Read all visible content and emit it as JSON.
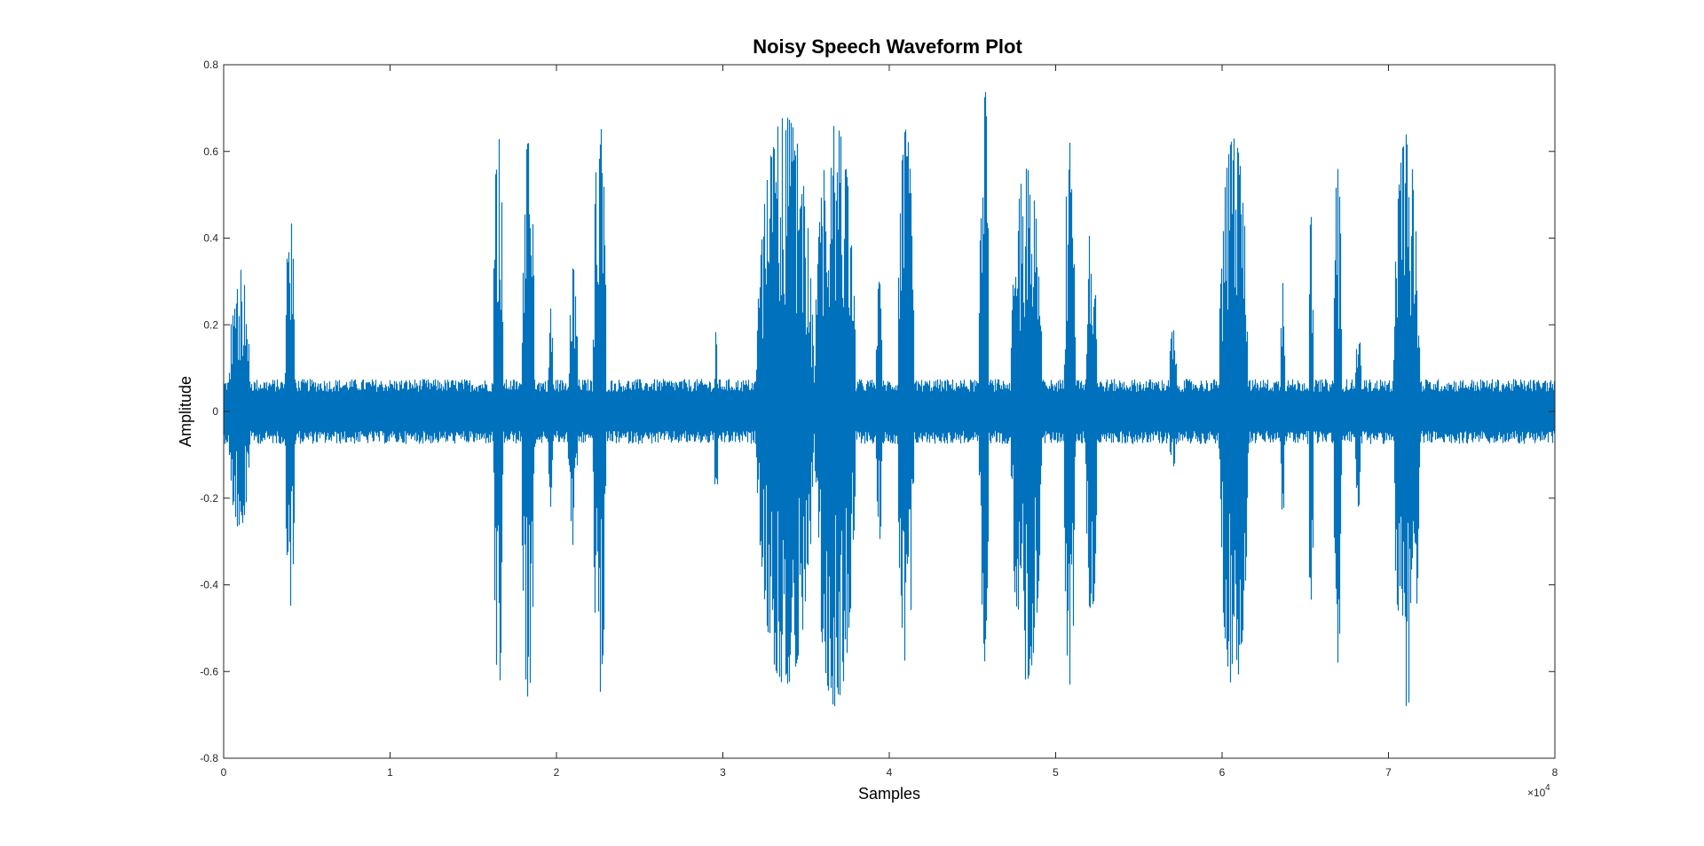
{
  "chart_data": {
    "type": "line",
    "title": "Noisy Speech Waveform Plot",
    "xlabel": "Samples",
    "ylabel": "Amplitude",
    "xlim": [
      0,
      80000
    ],
    "ylim": [
      -0.8,
      0.8
    ],
    "x_exponent_label": "×10",
    "x_exponent_power": "4",
    "x_ticks": [
      0,
      1,
      2,
      3,
      4,
      5,
      6,
      7,
      8
    ],
    "x_tick_labels": [
      "0",
      "1",
      "2",
      "3",
      "4",
      "5",
      "6",
      "7",
      "8"
    ],
    "y_ticks": [
      0.8,
      0.6,
      0.4,
      0.2,
      0,
      -0.2,
      -0.4,
      -0.6,
      -0.8
    ],
    "y_tick_labels": [
      "0.8",
      "0.6",
      "0.4",
      "0.2",
      "0",
      "-0.2",
      "-0.4",
      "-0.6",
      "-0.8"
    ],
    "grid": false,
    "series": [
      {
        "name": "noisy speech",
        "color": "#0072BD",
        "noise_floor": 0.06,
        "bursts": [
          {
            "start": 300,
            "end": 1600,
            "pos": 0.33,
            "neg": -0.27
          },
          {
            "start": 3700,
            "end": 4300,
            "pos": 0.45,
            "neg": -0.45
          },
          {
            "start": 16200,
            "end": 16800,
            "pos": 0.71,
            "neg": -0.67
          },
          {
            "start": 17900,
            "end": 18700,
            "pos": 0.62,
            "neg": -0.66
          },
          {
            "start": 19500,
            "end": 19800,
            "pos": 0.25,
            "neg": -0.22
          },
          {
            "start": 20700,
            "end": 21300,
            "pos": 0.33,
            "neg": -0.32
          },
          {
            "start": 22200,
            "end": 23000,
            "pos": 0.67,
            "neg": -0.65
          },
          {
            "start": 29500,
            "end": 29700,
            "pos": 0.19,
            "neg": -0.28
          },
          {
            "start": 32000,
            "end": 35500,
            "pos": 0.68,
            "neg": -0.63
          },
          {
            "start": 35500,
            "end": 38000,
            "pos": 0.66,
            "neg": -0.68
          },
          {
            "start": 39200,
            "end": 39600,
            "pos": 0.3,
            "neg": -0.3
          },
          {
            "start": 40500,
            "end": 41500,
            "pos": 0.65,
            "neg": -0.58
          },
          {
            "start": 45400,
            "end": 46000,
            "pos": 0.77,
            "neg": -0.58
          },
          {
            "start": 47300,
            "end": 49200,
            "pos": 0.56,
            "neg": -0.62
          },
          {
            "start": 50500,
            "end": 51200,
            "pos": 0.62,
            "neg": -0.63
          },
          {
            "start": 51800,
            "end": 52500,
            "pos": 0.48,
            "neg": -0.48
          },
          {
            "start": 56800,
            "end": 57300,
            "pos": 0.19,
            "neg": -0.13
          },
          {
            "start": 59800,
            "end": 61600,
            "pos": 0.63,
            "neg": -0.64
          },
          {
            "start": 63500,
            "end": 63800,
            "pos": 0.44,
            "neg": -0.24
          },
          {
            "start": 65200,
            "end": 65500,
            "pos": 0.45,
            "neg": -0.5
          },
          {
            "start": 66700,
            "end": 67200,
            "pos": 0.56,
            "neg": -0.58
          },
          {
            "start": 68000,
            "end": 68400,
            "pos": 0.18,
            "neg": -0.22
          },
          {
            "start": 70300,
            "end": 71900,
            "pos": 0.64,
            "neg": -0.68
          }
        ]
      }
    ]
  }
}
